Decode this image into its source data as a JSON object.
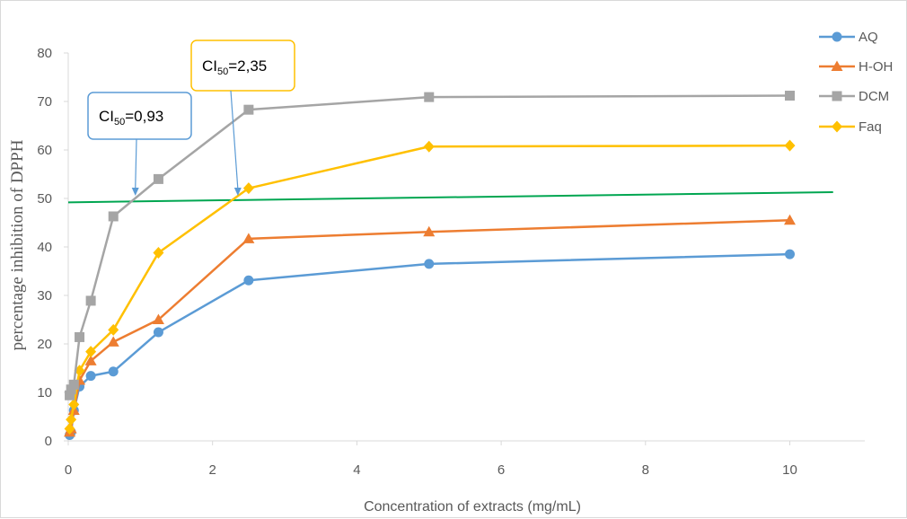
{
  "chart_data": {
    "type": "line",
    "title": "",
    "xlabel": "Concentration of extracts (mg/mL)",
    "ylabel": "percentage inhibition of DPPH",
    "xlim": [
      0,
      11
    ],
    "ylim": [
      0,
      80
    ],
    "xticks": [
      "0",
      "2",
      "4",
      "6",
      "8",
      "10"
    ],
    "yticks": [
      "0",
      "10",
      "20",
      "30",
      "40",
      "50",
      "60",
      "70",
      "80"
    ],
    "grid": false,
    "legend_position": "right",
    "series": [
      {
        "name": "AQ",
        "color": "#5b9bd5",
        "marker": "circle",
        "x": [
          0.0195,
          0.039,
          0.078,
          0.156,
          0.3125,
          0.625,
          1.25,
          2.5,
          5,
          10
        ],
        "y": [
          1.2,
          1.8,
          6.3,
          11.2,
          13.4,
          14.3,
          22.4,
          33.1,
          36.5,
          38.5
        ]
      },
      {
        "name": "H-OH",
        "color": "#ed7d31",
        "marker": "triangle",
        "x": [
          0.0195,
          0.039,
          0.078,
          0.156,
          0.3125,
          0.625,
          1.25,
          2.5,
          5,
          10
        ],
        "y": [
          1.8,
          2.5,
          6.3,
          12.5,
          16.5,
          20.4,
          25.0,
          41.7,
          43.1,
          45.5
        ]
      },
      {
        "name": "DCM",
        "color": "#a5a5a5",
        "marker": "square",
        "x": [
          0.0195,
          0.039,
          0.078,
          0.156,
          0.3125,
          0.625,
          1.25,
          2.5,
          5,
          10
        ],
        "y": [
          9.4,
          10.6,
          11.6,
          21.4,
          28.9,
          46.3,
          54.0,
          68.3,
          70.9,
          71.2
        ]
      },
      {
        "name": "Faq",
        "color": "#ffc000",
        "marker": "diamond",
        "x": [
          0.0195,
          0.039,
          0.078,
          0.156,
          0.3125,
          0.625,
          1.25,
          2.5,
          5,
          10
        ],
        "y": [
          2.5,
          4.4,
          7.5,
          14.5,
          18.4,
          22.9,
          38.8,
          52.1,
          60.7,
          60.9
        ]
      }
    ],
    "reference_line": {
      "color": "#00a651",
      "x": [
        0,
        10.6
      ],
      "y": [
        49.2,
        51.3
      ]
    },
    "annotations": [
      {
        "id": "dcm",
        "pre": "CI",
        "sub": "50",
        "post": "=0,93",
        "border": "#5b9bd5",
        "x": 0.93,
        "y": 50
      },
      {
        "id": "faq",
        "pre": "CI",
        "sub": "50",
        "post": "=2,35",
        "border": "#ffc000",
        "x": 2.35,
        "y": 50
      }
    ]
  }
}
